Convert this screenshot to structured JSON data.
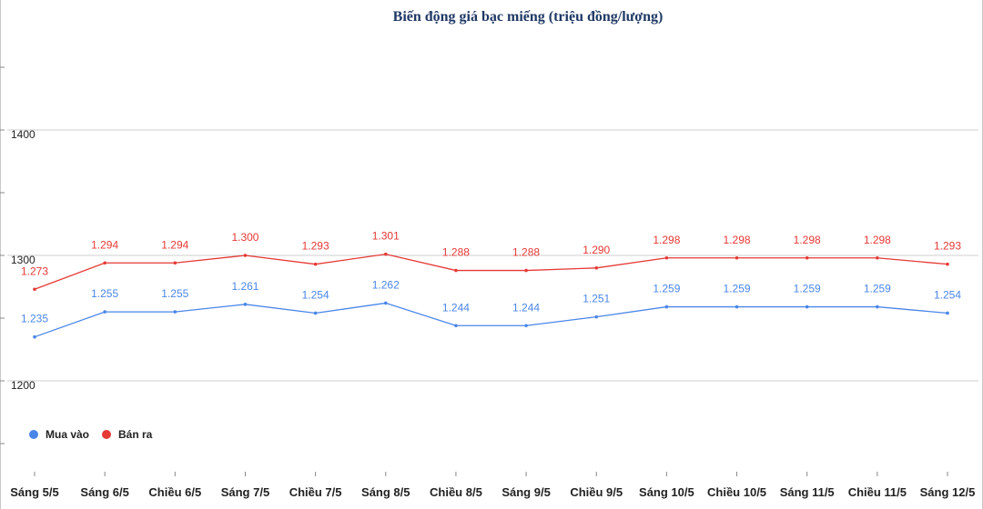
{
  "chart_data": {
    "type": "line",
    "title": "Biến động giá bạc miếng (triệu đồng/lượng)",
    "xlabel": "",
    "ylabel": "",
    "ylim": [
      1200,
      1400
    ],
    "yticks": [
      1200,
      1300,
      1400
    ],
    "grid": true,
    "legend_position": "bottom-left",
    "categories": [
      "Sáng 5/5",
      "Sáng 6/5",
      "Chiều 6/5",
      "Sáng 7/5",
      "Chiều 7/5",
      "Sáng 8/5",
      "Chiều 8/5",
      "Sáng 9/5",
      "Chiều 9/5",
      "Sáng 10/5",
      "Chiều 10/5",
      "Sáng 11/5",
      "Chiều 11/5",
      "Sáng 12/5"
    ],
    "series": [
      {
        "name": "Mua vào",
        "color": "#4a86e8",
        "values": [
          1235,
          1255,
          1255,
          1261,
          1254,
          1262,
          1244,
          1244,
          1251,
          1259,
          1259,
          1259,
          1259,
          1254
        ],
        "labels": [
          "1.235",
          "1.255",
          "1.255",
          "1.261",
          "1.254",
          "1.262",
          "1.244",
          "1.244",
          "1.251",
          "1.259",
          "1.259",
          "1.259",
          "1.259",
          "1.254"
        ]
      },
      {
        "name": "Bán ra",
        "color": "#e53935",
        "values": [
          1273,
          1294,
          1294,
          1300,
          1293,
          1301,
          1288,
          1288,
          1290,
          1298,
          1298,
          1298,
          1298,
          1293
        ],
        "labels": [
          "1.273",
          "1.294",
          "1.294",
          "1.300",
          "1.293",
          "1.301",
          "1.288",
          "1.288",
          "1.290",
          "1.298",
          "1.298",
          "1.298",
          "1.298",
          "1.293"
        ]
      }
    ]
  }
}
